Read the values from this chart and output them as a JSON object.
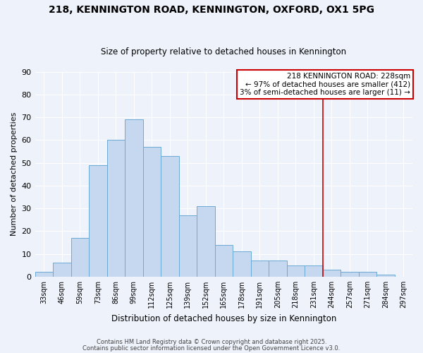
{
  "title": "218, KENNINGTON ROAD, KENNINGTON, OXFORD, OX1 5PG",
  "subtitle": "Size of property relative to detached houses in Kennington",
  "xlabel": "Distribution of detached houses by size in Kennington",
  "ylabel": "Number of detached properties",
  "bin_labels": [
    "33sqm",
    "46sqm",
    "59sqm",
    "73sqm",
    "86sqm",
    "99sqm",
    "112sqm",
    "125sqm",
    "139sqm",
    "152sqm",
    "165sqm",
    "178sqm",
    "191sqm",
    "205sqm",
    "218sqm",
    "231sqm",
    "244sqm",
    "257sqm",
    "271sqm",
    "284sqm",
    "297sqm"
  ],
  "bar_heights": [
    2,
    6,
    17,
    49,
    60,
    69,
    57,
    53,
    27,
    31,
    14,
    11,
    7,
    7,
    5,
    5,
    3,
    2,
    2,
    1,
    0
  ],
  "bar_color": "#c5d8f0",
  "bar_edge_color": "#6aaad4",
  "vline_x": 15.5,
  "vline_color": "#cc0000",
  "annotation_title": "218 KENNINGTON ROAD: 228sqm",
  "annotation_line1": "← 97% of detached houses are smaller (412)",
  "annotation_line2": "3% of semi-detached houses are larger (11) →",
  "annotation_box_color": "#ffffff",
  "annotation_border_color": "#cc0000",
  "ylim": [
    0,
    90
  ],
  "yticks": [
    0,
    10,
    20,
    30,
    40,
    50,
    60,
    70,
    80,
    90
  ],
  "footer1": "Contains HM Land Registry data © Crown copyright and database right 2025.",
  "footer2": "Contains public sector information licensed under the Open Government Licence v3.0.",
  "bg_color": "#eef2fb",
  "grid_color": "#ffffff"
}
